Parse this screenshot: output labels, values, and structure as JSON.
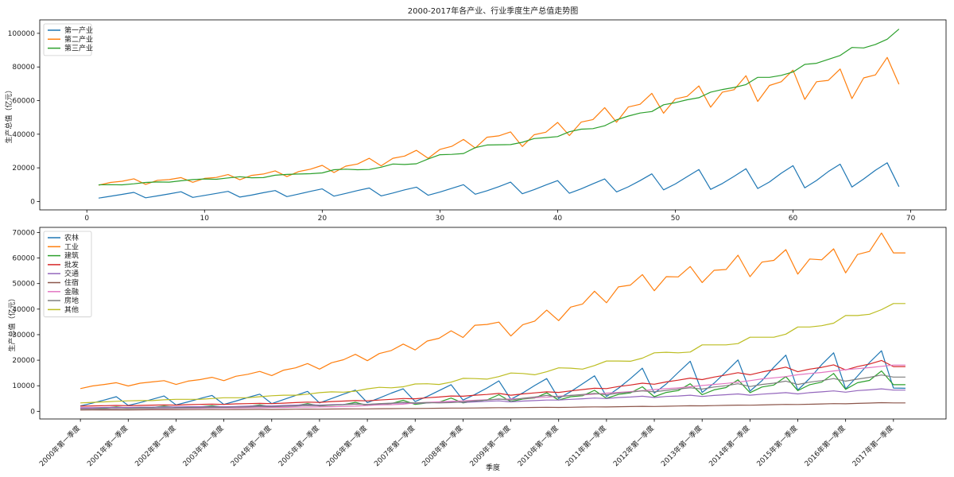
{
  "chart_data": [
    {
      "type": "line",
      "title": "2000-2017年各产业、行业季度生产总值走势图",
      "xlabel": "",
      "ylabel": "生产总值（亿元）",
      "xlim": [
        -4,
        73
      ],
      "ylim": [
        -5000,
        108000
      ],
      "xticks": [
        0,
        10,
        20,
        30,
        40,
        50,
        60,
        70
      ],
      "yticks": [
        0,
        20000,
        40000,
        60000,
        80000,
        100000
      ],
      "grid": false,
      "legend": "top-left",
      "x": [
        1,
        2,
        3,
        4,
        5,
        6,
        7,
        8,
        9,
        10,
        11,
        12,
        13,
        14,
        15,
        16,
        17,
        18,
        19,
        20,
        21,
        22,
        23,
        24,
        25,
        26,
        27,
        28,
        29,
        30,
        31,
        32,
        33,
        34,
        35,
        36,
        37,
        38,
        39,
        40,
        41,
        42,
        43,
        44,
        45,
        46,
        47,
        48,
        49,
        50,
        51,
        52,
        53,
        54,
        55,
        56,
        57,
        58,
        59,
        60,
        61,
        62,
        63,
        64,
        65,
        66,
        67,
        68,
        69
      ],
      "series": [
        {
          "name": "第一产业",
          "color": "#1f77b4",
          "values": [
            2000,
            3100,
            4200,
            5400,
            2200,
            3300,
            4500,
            5800,
            2400,
            3600,
            4800,
            6000,
            2600,
            3800,
            5200,
            6500,
            2900,
            4400,
            6000,
            7500,
            3200,
            4800,
            6500,
            8000,
            3300,
            5000,
            6900,
            8500,
            3700,
            5600,
            7800,
            10000,
            4300,
            6400,
            8800,
            11500,
            4600,
            7000,
            9800,
            12400,
            4900,
            7500,
            10500,
            13400,
            5700,
            8700,
            12400,
            16400,
            6900,
            10400,
            14700,
            19000,
            7200,
            10700,
            15000,
            19500,
            7700,
            11600,
            16800,
            21300,
            8100,
            12500,
            17800,
            22200,
            8600,
            13400,
            18600,
            23000,
            8800
          ]
        },
        {
          "name": "第二产业",
          "color": "#ff7f0e",
          "values": [
            9700,
            11300,
            12000,
            13500,
            10200,
            12600,
            13000,
            14200,
            11400,
            13700,
            14300,
            16000,
            12900,
            15500,
            16300,
            18200,
            14800,
            17800,
            19200,
            21500,
            17200,
            21000,
            22300,
            25700,
            21200,
            25700,
            27000,
            30400,
            25700,
            31000,
            32800,
            36900,
            31800,
            38200,
            39000,
            41400,
            32700,
            39700,
            41200,
            47000,
            39200,
            47200,
            48700,
            55800,
            47100,
            56200,
            57800,
            64300,
            52500,
            61000,
            62500,
            68700,
            56100,
            65000,
            66500,
            74800,
            59500,
            69000,
            71200,
            78100,
            60700,
            71200,
            72000,
            78800,
            61200,
            73500,
            75300,
            85700,
            69700
          ]
        },
        {
          "name": "第三产业",
          "color": "#2ca02c",
          "values": [
            9900,
            10000,
            9900,
            10500,
            11300,
            11600,
            11500,
            12300,
            13000,
            13400,
            13200,
            14000,
            14700,
            14100,
            14200,
            15600,
            16100,
            16300,
            16500,
            17000,
            18900,
            19200,
            18900,
            19000,
            20400,
            22300,
            22000,
            22400,
            25300,
            27800,
            28000,
            28500,
            32000,
            33600,
            33700,
            33800,
            35200,
            37400,
            38000,
            38600,
            41500,
            43000,
            43300,
            45000,
            48500,
            50800,
            52600,
            53500,
            57500,
            58800,
            60500,
            61700,
            65000,
            66600,
            67800,
            69500,
            73800,
            73800,
            75000,
            77000,
            81500,
            82200,
            84500,
            86800,
            91600,
            91300,
            93400,
            96500,
            102500
          ]
        }
      ],
      "annotations": []
    },
    {
      "type": "line",
      "title": "",
      "xlabel": "季度",
      "ylabel": "生产总值（亿元）",
      "categories": [
        "2000年第一季度",
        "2001年第一季度",
        "2002年第一季度",
        "2003年第一季度",
        "2004年第一季度",
        "2005年第一季度",
        "2006年第一季度",
        "2007年第一季度",
        "2008年第一季度",
        "2009年第一季度",
        "2010年第一季度",
        "2011年第一季度",
        "2012年第一季度",
        "2013年第一季度",
        "2014年第一季度",
        "2015年第一季度",
        "2016年第一季度",
        "2017年第一季度"
      ],
      "xlim": [
        -3.4,
        72.4
      ],
      "ylim": [
        -3000,
        72000
      ],
      "yticks": [
        0,
        10000,
        20000,
        30000,
        40000,
        50000,
        60000,
        70000
      ],
      "grid": false,
      "legend": "top-left",
      "x": [
        0,
        1,
        2,
        3,
        4,
        5,
        6,
        7,
        8,
        9,
        10,
        11,
        12,
        13,
        14,
        15,
        16,
        17,
        18,
        19,
        20,
        21,
        22,
        23,
        24,
        25,
        26,
        27,
        28,
        29,
        30,
        31,
        32,
        33,
        34,
        35,
        36,
        37,
        38,
        39,
        40,
        41,
        42,
        43,
        44,
        45,
        46,
        47,
        48,
        49,
        50,
        51,
        52,
        53,
        54,
        55,
        56,
        57,
        58,
        59,
        60,
        61,
        62,
        63,
        64,
        65,
        66,
        67,
        68,
        69
      ],
      "series": [
        {
          "name": "农林",
          "color": "#1f77b4",
          "values": [
            2100,
            3200,
            4400,
            5700,
            2300,
            3400,
            4700,
            6000,
            2500,
            3700,
            5000,
            6200,
            2700,
            4000,
            5400,
            6700,
            3000,
            4600,
            6200,
            7800,
            3300,
            5000,
            6700,
            8300,
            3400,
            5200,
            7100,
            8800,
            3800,
            5800,
            8100,
            10400,
            4400,
            6600,
            9100,
            11900,
            4700,
            7200,
            10100,
            12800,
            5000,
            7700,
            10800,
            13900,
            5800,
            9000,
            12800,
            16900,
            7100,
            10700,
            15200,
            19600,
            7400,
            11000,
            15500,
            20100,
            7900,
            12000,
            17300,
            22000,
            8300,
            12900,
            18300,
            22900,
            8800,
            13800,
            19100,
            23700,
            9100,
            9000
          ]
        },
        {
          "name": "工业",
          "color": "#ff7f0e",
          "values": [
            8900,
            9900,
            10500,
            11200,
            9900,
            11000,
            11500,
            12000,
            10500,
            11800,
            12400,
            13300,
            12000,
            13700,
            14500,
            15600,
            14000,
            16100,
            17000,
            18700,
            16500,
            19000,
            20200,
            22300,
            19800,
            22600,
            23800,
            26300,
            24000,
            27500,
            28600,
            31500,
            28900,
            33700,
            34000,
            34900,
            29500,
            33900,
            35300,
            39600,
            35500,
            40800,
            42000,
            47000,
            42500,
            48700,
            49400,
            53500,
            47200,
            52700,
            52600,
            56700,
            50400,
            55200,
            55500,
            61100,
            52700,
            58400,
            59100,
            63300,
            53700,
            59600,
            59300,
            63600,
            54200,
            61400,
            62600,
            69800,
            62000,
            62000
          ]
        },
        {
          "name": "建筑",
          "color": "#2ca02c",
          "values": [
            1100,
            1200,
            1300,
            1700,
            1300,
            1400,
            1500,
            2000,
            1500,
            1600,
            1700,
            2200,
            1600,
            1800,
            1900,
            2500,
            1800,
            2100,
            2200,
            3000,
            2100,
            2400,
            2600,
            3500,
            2300,
            2800,
            3000,
            4300,
            2700,
            3300,
            3600,
            5200,
            3300,
            4000,
            4400,
            6500,
            3800,
            4800,
            5200,
            7200,
            4400,
            5700,
            6100,
            8200,
            5100,
            6600,
            7200,
            9600,
            5700,
            7400,
            8100,
            10800,
            6500,
            8400,
            9300,
            12300,
            7300,
            9500,
            10300,
            13600,
            8100,
            10400,
            11400,
            14800,
            8600,
            11200,
            12100,
            15800,
            10400,
            10400
          ]
        },
        {
          "name": "批发",
          "color": "#d62728",
          "values": [
            2000,
            2100,
            2200,
            2300,
            2200,
            2300,
            2400,
            2500,
            2400,
            2600,
            2700,
            2800,
            2700,
            2900,
            3000,
            3100,
            3000,
            3200,
            3400,
            3600,
            3500,
            3800,
            4000,
            4200,
            4100,
            4400,
            4700,
            5000,
            4900,
            5300,
            5600,
            6000,
            5900,
            6300,
            6600,
            7000,
            6300,
            6800,
            7200,
            7600,
            7400,
            8000,
            8500,
            9000,
            8900,
            9700,
            10300,
            11000,
            10600,
            11500,
            12200,
            13000,
            12400,
            13400,
            14200,
            15100,
            14300,
            15400,
            16300,
            17300,
            15500,
            16500,
            17200,
            18200,
            16200,
            17500,
            18500,
            19900,
            17500,
            17500
          ]
        },
        {
          "name": "交通",
          "color": "#9467bd",
          "values": [
            1400,
            1400,
            1500,
            1500,
            1500,
            1600,
            1600,
            1700,
            1700,
            1800,
            1800,
            1900,
            1800,
            1900,
            2000,
            2200,
            2100,
            2300,
            2400,
            2600,
            2400,
            2600,
            2700,
            2900,
            2700,
            2900,
            3100,
            3300,
            3100,
            3300,
            3500,
            3700,
            3500,
            3700,
            3900,
            4100,
            3700,
            4000,
            4200,
            4400,
            4400,
            4700,
            4900,
            5200,
            5000,
            5400,
            5600,
            5900,
            5400,
            5800,
            6000,
            6300,
            5800,
            6200,
            6500,
            6800,
            6300,
            6700,
            7000,
            7300,
            6800,
            7300,
            7600,
            8000,
            7500,
            8100,
            8400,
            8800,
            8300,
            8300
          ]
        },
        {
          "name": "住宿",
          "color": "#8c564b",
          "values": [
            500,
            520,
            540,
            560,
            560,
            580,
            600,
            620,
            620,
            650,
            680,
            700,
            660,
            700,
            730,
            760,
            740,
            780,
            820,
            860,
            840,
            880,
            920,
            960,
            960,
            1000,
            1050,
            1100,
            1100,
            1150,
            1200,
            1260,
            1250,
            1300,
            1360,
            1420,
            1380,
            1440,
            1500,
            1560,
            1520,
            1590,
            1660,
            1740,
            1700,
            1780,
            1860,
            1950,
            1900,
            1990,
            2080,
            2180,
            2120,
            2220,
            2320,
            2430,
            2370,
            2480,
            2590,
            2710,
            2650,
            2770,
            2890,
            3020,
            2950,
            3090,
            3230,
            3380,
            3300,
            3300
          ]
        },
        {
          "name": "金融",
          "color": "#e377c2",
          "values": [
            1000,
            1000,
            1000,
            1000,
            1100,
            1100,
            1100,
            1100,
            1200,
            1200,
            1200,
            1300,
            1300,
            1300,
            1400,
            1400,
            1500,
            1500,
            1600,
            1600,
            1700,
            1800,
            1900,
            2000,
            2300,
            2500,
            2600,
            2800,
            3300,
            3500,
            3700,
            3900,
            4100,
            4300,
            4500,
            4700,
            4800,
            5000,
            5300,
            5500,
            5900,
            6200,
            6400,
            6700,
            7100,
            7400,
            7700,
            8100,
            8500,
            8900,
            9200,
            9600,
            10100,
            10500,
            10900,
            11400,
            12000,
            12700,
            13100,
            13600,
            14300,
            14800,
            15200,
            15800,
            16300,
            16700,
            17100,
            17600,
            18100,
            18100
          ]
        },
        {
          "name": "房地",
          "color": "#7f7f7f",
          "values": [
            900,
            950,
            1000,
            1100,
            1050,
            1150,
            1200,
            1300,
            1250,
            1350,
            1450,
            1550,
            1500,
            1600,
            1700,
            1850,
            1800,
            1950,
            2050,
            2250,
            2200,
            2400,
            2550,
            2800,
            2700,
            3000,
            3200,
            3500,
            3300,
            3400,
            3300,
            3400,
            3700,
            4100,
            4400,
            4800,
            4400,
            5100,
            5600,
            6200,
            5600,
            6200,
            6600,
            7000,
            6500,
            7100,
            7500,
            8000,
            7600,
            8200,
            8700,
            9200,
            8700,
            9500,
            10000,
            10800,
            9700,
            10500,
            11000,
            11800,
            10500,
            11400,
            12000,
            12800,
            11800,
            12600,
            13300,
            14200,
            13400,
            13400
          ]
        },
        {
          "name": "其他",
          "color": "#bcbd22",
          "values": [
            3300,
            3500,
            3700,
            3900,
            4100,
            4200,
            4200,
            4500,
            4700,
            4700,
            4700,
            5000,
            5300,
            5300,
            5300,
            5700,
            6100,
            6300,
            6300,
            6700,
            7300,
            7600,
            7500,
            7900,
            8800,
            9400,
            9200,
            9600,
            10700,
            10800,
            10500,
            11400,
            12900,
            12800,
            12600,
            13600,
            15000,
            14800,
            14300,
            15500,
            17000,
            16900,
            16500,
            17900,
            19700,
            19700,
            19600,
            20800,
            22900,
            23100,
            22900,
            23200,
            26000,
            26000,
            26000,
            26500,
            29000,
            29000,
            29000,
            30200,
            33000,
            33000,
            33500,
            34500,
            37500,
            37500,
            38000,
            39800,
            42200,
            42200
          ]
        }
      ],
      "annotations": []
    }
  ]
}
